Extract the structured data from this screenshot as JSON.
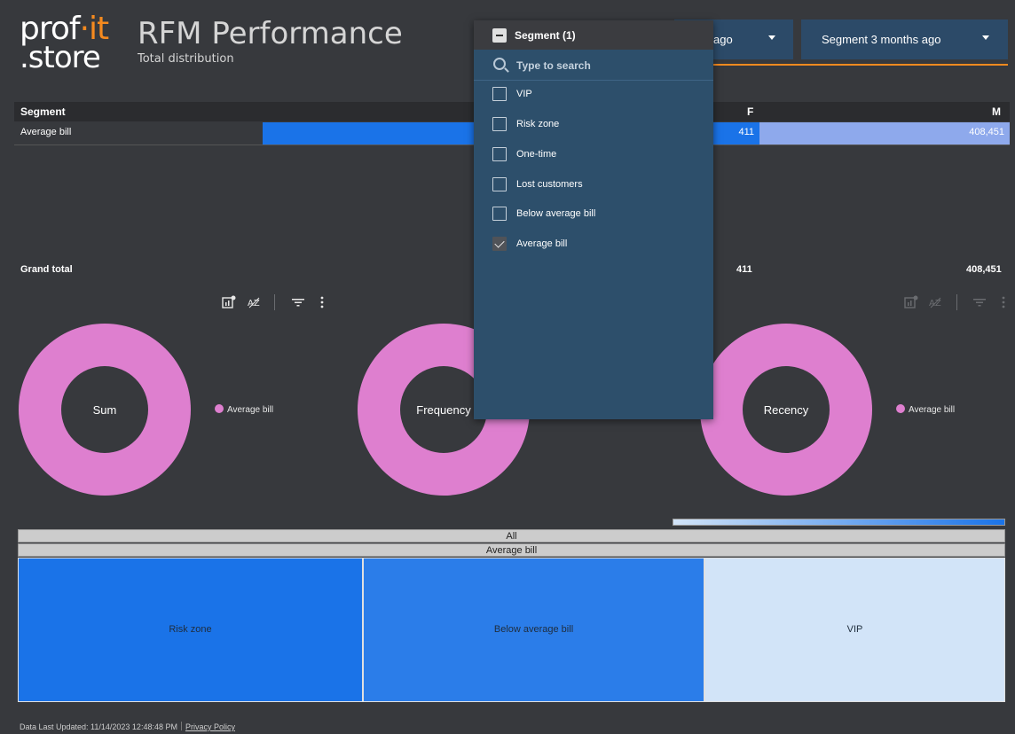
{
  "header": {
    "logo_line1_a": "prof",
    "logo_line1_b": "·it",
    "logo_line2": ".store",
    "title": "RFM Performance",
    "subtitle": "Total distribution"
  },
  "controls": {
    "segment_prev_label": "ago",
    "segment_3m_label": "Segment 3 months ago"
  },
  "table": {
    "headers": {
      "segment": "Segment",
      "f": "F",
      "m": "M"
    },
    "rows": [
      {
        "segment": "Average bill",
        "f": "411",
        "m": "408,451"
      }
    ],
    "grand_total": {
      "label": "Grand total",
      "f": "411",
      "m": "408,451"
    }
  },
  "donuts": [
    {
      "center_label": "Sum",
      "legend": "Average bill"
    },
    {
      "center_label": "Frequency",
      "legend": "Average bill"
    },
    {
      "center_label": "Recency",
      "legend": "Average bill"
    }
  ],
  "treemap": {
    "level1": "All",
    "level2": "Average bill",
    "cells": [
      {
        "label": "Risk zone",
        "color": "#1a73e8"
      },
      {
        "label": "Below average bill",
        "color": "#2b7de9"
      },
      {
        "label": "VIP",
        "color": "#d2e4f8"
      }
    ]
  },
  "footer": {
    "updated": "Data Last Updated: 11/14/2023 12:48:48 PM",
    "privacy": "Privacy Policy"
  },
  "dropdown": {
    "title": "Segment (1)",
    "search_placeholder": "Type to search",
    "options": [
      {
        "label": "VIP",
        "checked": false
      },
      {
        "label": "Risk zone",
        "checked": false
      },
      {
        "label": "One-time",
        "checked": false
      },
      {
        "label": "Lost customers",
        "checked": false
      },
      {
        "label": "Below average bill",
        "checked": false
      },
      {
        "label": "Average bill",
        "checked": true
      }
    ]
  },
  "colors": {
    "accent": "#f58a1f",
    "donut": "#de7fcf",
    "control_bg": "#2c4a68",
    "bar_blue": "#1a73e8",
    "bar_light": "#8ea9ec"
  }
}
